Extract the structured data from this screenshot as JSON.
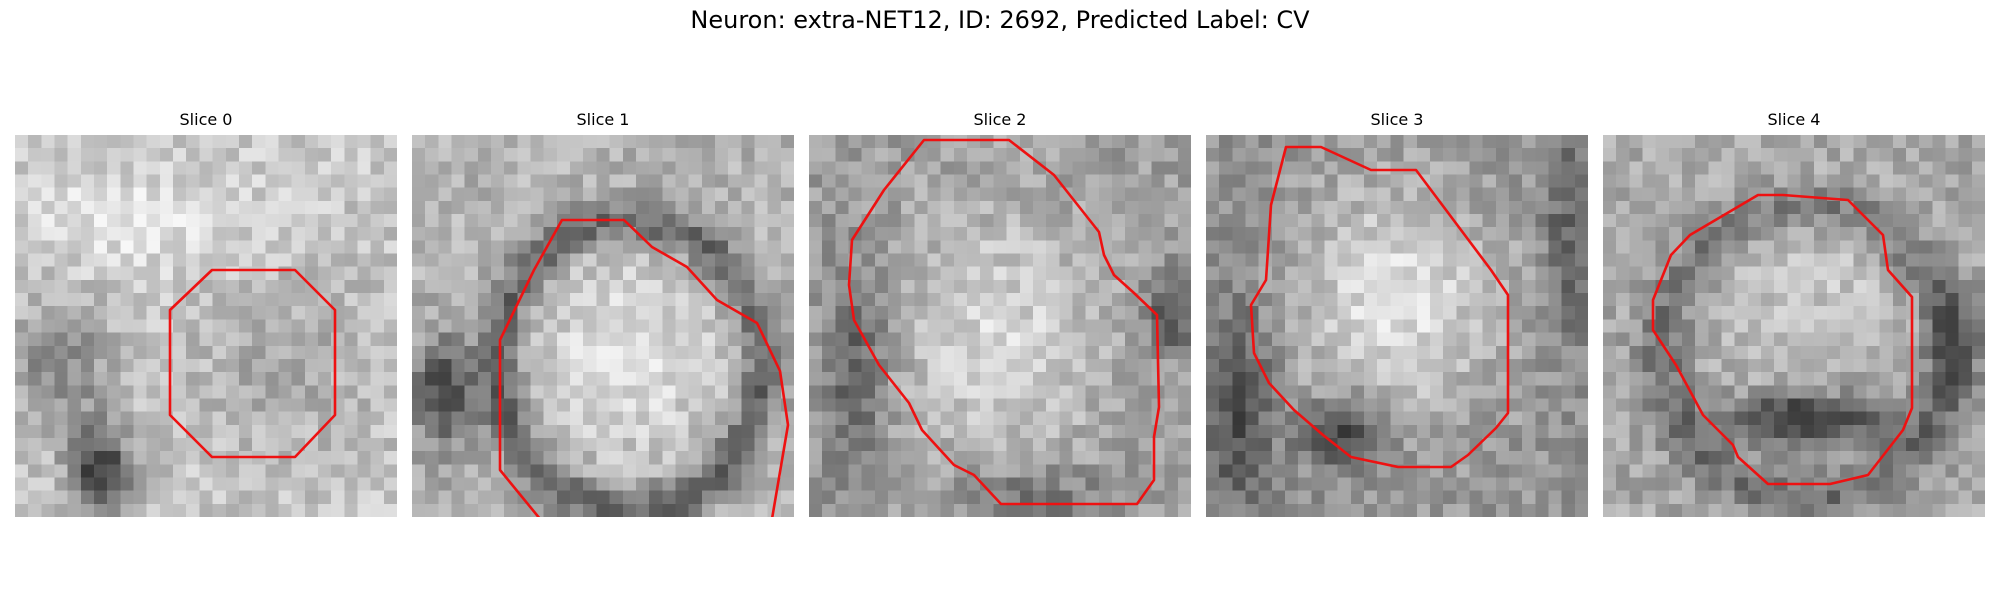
{
  "figure": {
    "title": "Neuron: extra-NET12, ID: 2692, Predicted Label: CV",
    "contour_color": "#ee1111",
    "panels": [
      {
        "title": "Slice 0",
        "image": "grayscale-microscopy-slice",
        "contour": "red-segmentation-contour"
      },
      {
        "title": "Slice 1",
        "image": "grayscale-microscopy-slice",
        "contour": "red-segmentation-contour"
      },
      {
        "title": "Slice 2",
        "image": "grayscale-microscopy-slice",
        "contour": "red-segmentation-contour"
      },
      {
        "title": "Slice 3",
        "image": "grayscale-microscopy-slice",
        "contour": "red-segmentation-contour"
      },
      {
        "title": "Slice 4",
        "image": "grayscale-microscopy-slice",
        "contour": "red-segmentation-contour"
      }
    ]
  }
}
